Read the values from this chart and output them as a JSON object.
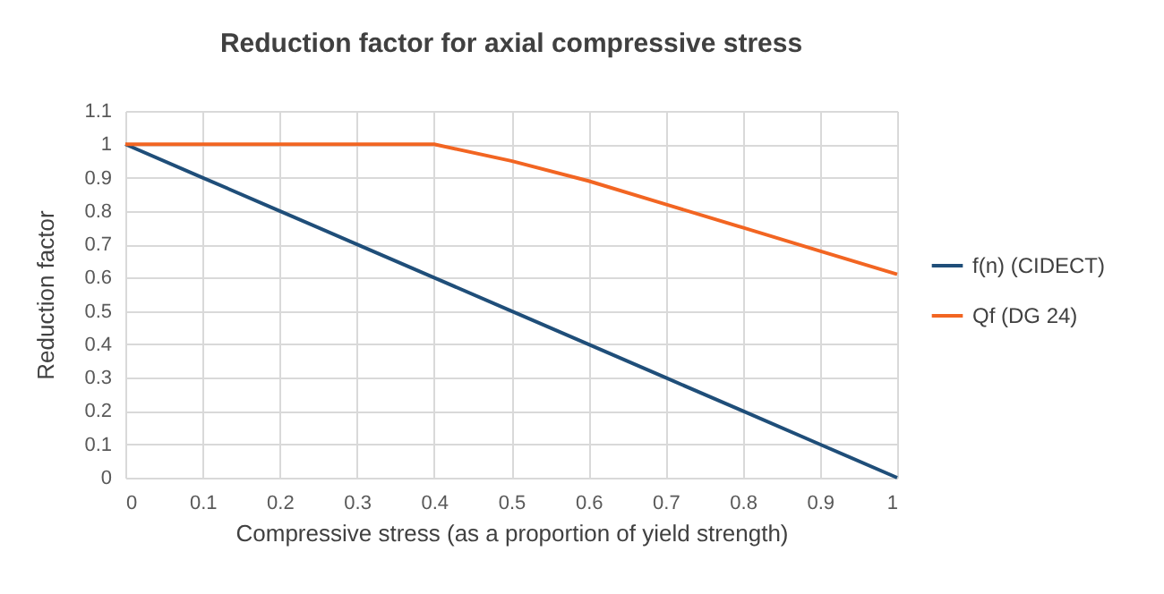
{
  "chart_data": {
    "type": "line",
    "title": "Reduction factor for axial compressive stress",
    "xlabel": "Compressive stress (as a proportion of yield strength)",
    "ylabel": "Reduction factor",
    "x": [
      0,
      0.1,
      0.2,
      0.3,
      0.4,
      0.5,
      0.6,
      0.7,
      0.8,
      0.9,
      1
    ],
    "series": [
      {
        "name": "f(n) (CIDECT)",
        "color": "#1f4e79",
        "values": [
          1,
          0.9,
          0.8,
          0.7,
          0.6,
          0.5,
          0.4,
          0.3,
          0.2,
          0.1,
          0
        ]
      },
      {
        "name": "Qf (DG 24)",
        "color": "#f26522",
        "values": [
          1,
          1,
          1,
          1,
          1,
          0.95,
          0.89,
          0.82,
          0.75,
          0.68,
          0.61
        ]
      }
    ],
    "xlim": [
      0,
      1
    ],
    "xticks": [
      0,
      0.1,
      0.2,
      0.3,
      0.4,
      0.5,
      0.6,
      0.7,
      0.8,
      0.9,
      1
    ],
    "ylim": [
      0,
      1.1
    ],
    "yticks": [
      0,
      0.1,
      0.2,
      0.3,
      0.4,
      0.5,
      0.6,
      0.7,
      0.8,
      0.9,
      1,
      1.1
    ],
    "grid": true,
    "legend": "right",
    "line_style": "solid",
    "marker": "none"
  }
}
